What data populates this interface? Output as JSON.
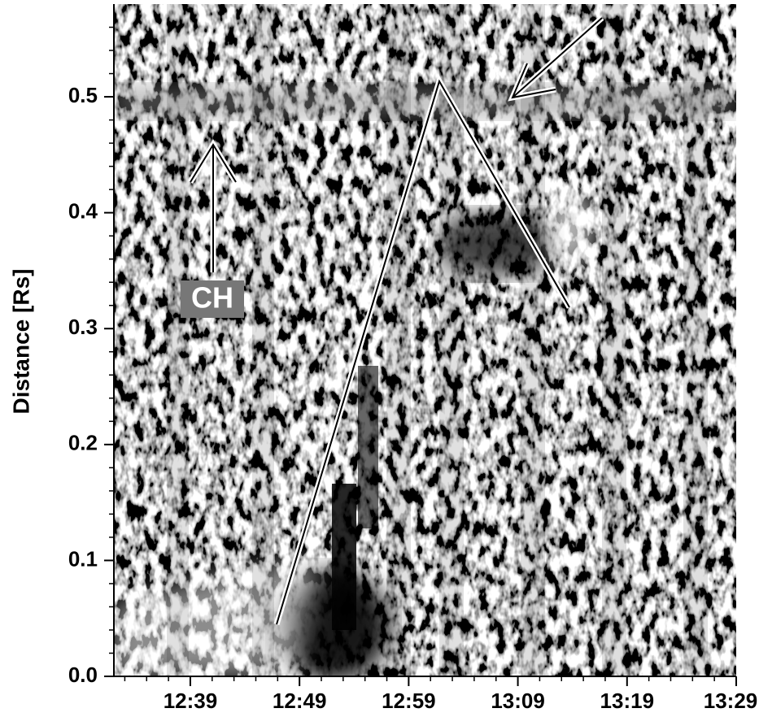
{
  "chart_data": {
    "type": "image",
    "y_label": "Distance [Rs]",
    "annotation": "CH",
    "xlim": [
      752,
      809
    ],
    "xticks": [
      {
        "value": 759,
        "label": "12:39"
      },
      {
        "value": 769,
        "label": "12:49"
      },
      {
        "value": 779,
        "label": "12:59"
      },
      {
        "value": 789,
        "label": "13:09"
      },
      {
        "value": 799,
        "label": "13:19"
      },
      {
        "value": 809,
        "label": "13:29"
      }
    ],
    "xminorticks": [
      753,
      755,
      757,
      761,
      763,
      765,
      767,
      771,
      773,
      775,
      777,
      781,
      783,
      785,
      787,
      791,
      793,
      795,
      797,
      801,
      803,
      805,
      807
    ],
    "ylim": [
      0,
      0.58
    ],
    "yticks": [
      {
        "value": 0,
        "label": "0.0"
      },
      0.1,
      0.2,
      0.3,
      0.4,
      0.5
    ],
    "yminorticks": [
      0.02,
      0.04,
      0.06,
      0.08,
      0.12,
      0.14,
      0.16,
      0.18,
      0.22,
      0.24,
      0.26,
      0.28,
      0.32,
      0.34,
      0.36,
      0.38,
      0.42,
      0.44,
      0.46,
      0.48,
      0.52,
      0.54,
      0.56
    ]
  }
}
